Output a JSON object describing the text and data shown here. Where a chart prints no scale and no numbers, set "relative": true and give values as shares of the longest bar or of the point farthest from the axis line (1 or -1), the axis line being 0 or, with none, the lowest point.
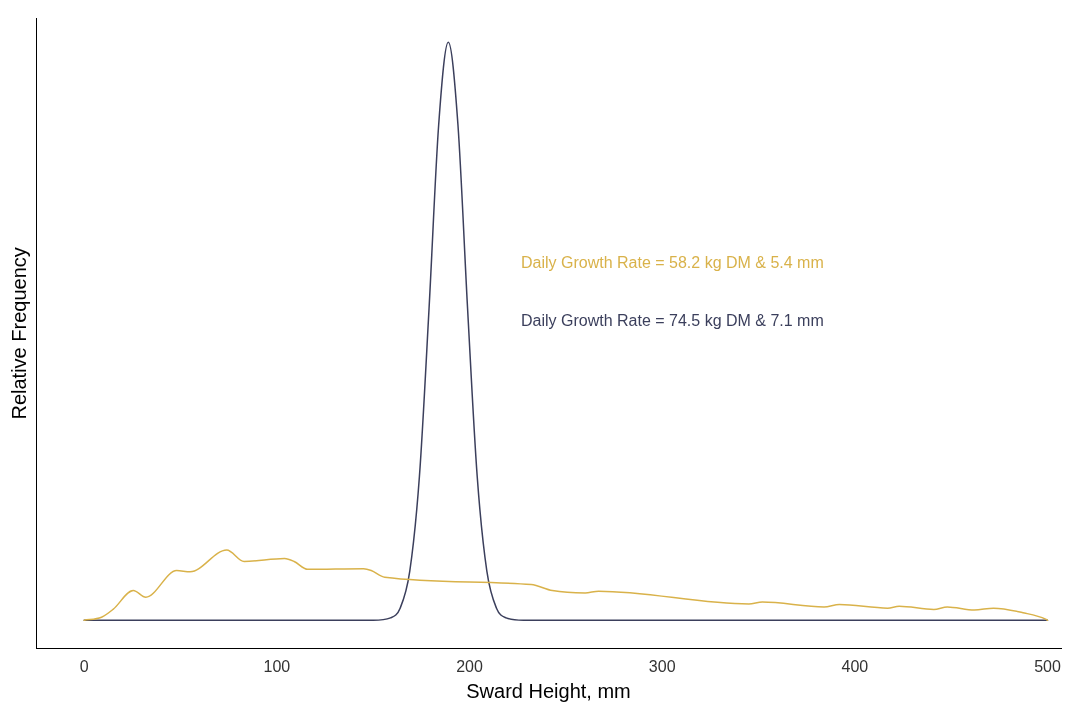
{
  "chart_data": {
    "type": "line",
    "relative": true,
    "xlabel": "Sward Height, mm",
    "ylabel": "Relative Frequency",
    "xlim": [
      -25,
      507
    ],
    "xticks": [
      0,
      100,
      200,
      300,
      400,
      500
    ],
    "grid": false,
    "legend": false,
    "marker": "none",
    "line_style": "solid",
    "annotations": [
      "Daily Growth Rate = 58.2 kg DM & 5.4 mm",
      "Daily Growth Rate = 74.5 kg DM & 7.1 mm"
    ],
    "series": [
      {
        "color": "#d9b24a",
        "x": [
          0,
          9,
          15,
          25.5,
          32,
          48,
          55,
          74,
          83,
          104,
          109,
          116,
          145,
          149,
          156,
          232,
          243,
          260,
          267,
          345,
          352,
          384,
          392,
          417,
          423,
          441,
          448,
          462,
          472,
          488,
          499,
          500
        ],
        "values": [
          0.047,
          0.052,
          0.065,
          0.096,
          0.085,
          0.129,
          0.127,
          0.163,
          0.144,
          0.149,
          0.144,
          0.131,
          0.132,
          0.129,
          0.118,
          0.106,
          0.096,
          0.092,
          0.095,
          0.074,
          0.077,
          0.069,
          0.073,
          0.067,
          0.07,
          0.065,
          0.069,
          0.064,
          0.067,
          0.059,
          0.049,
          0.047
        ]
      },
      {
        "color": "#3b3f5c",
        "x": [
          0,
          150,
          159,
          164,
          169,
          174,
          179,
          184,
          189,
          194,
          199,
          204,
          209,
          214,
          219,
          228,
          500
        ],
        "values": [
          0.047,
          0.047,
          0.051,
          0.067,
          0.128,
          0.284,
          0.561,
          0.864,
          1.0,
          0.864,
          0.561,
          0.284,
          0.128,
          0.067,
          0.051,
          0.047,
          0.047
        ]
      }
    ]
  }
}
